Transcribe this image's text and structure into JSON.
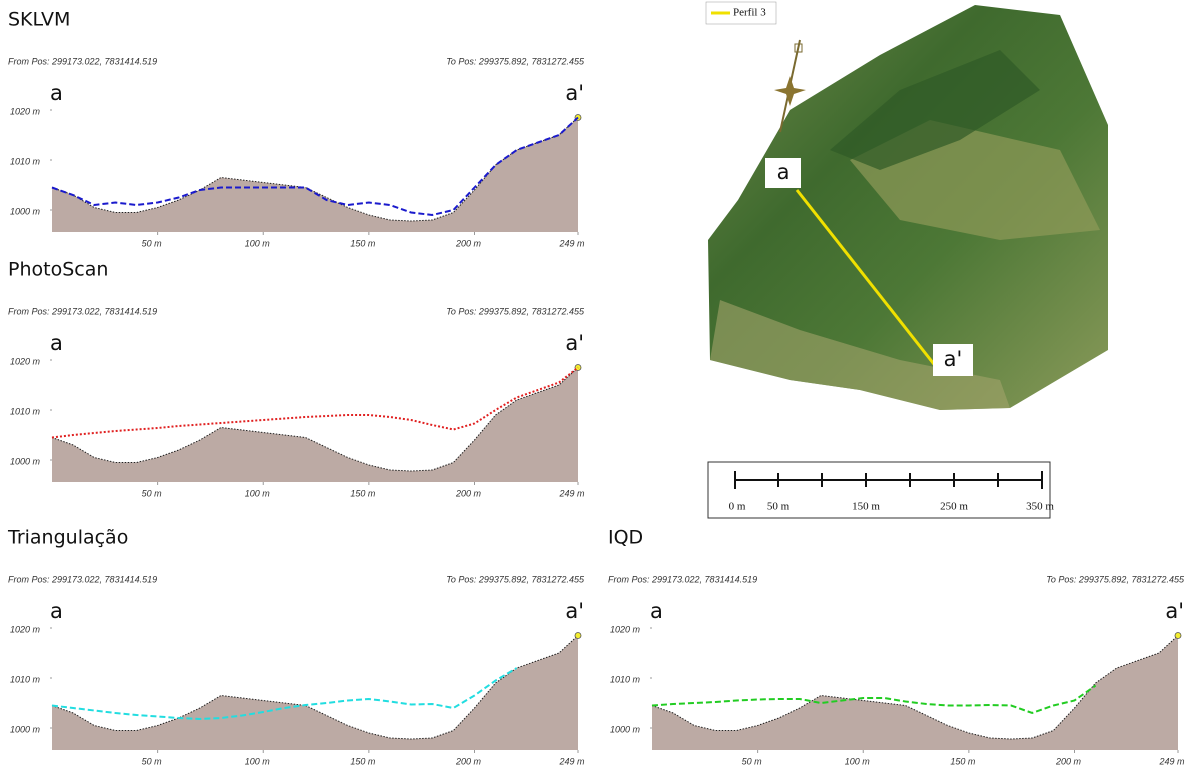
{
  "chart_data": [
    {
      "type": "area",
      "title": "SKLVM",
      "from_pos": "From Pos: 299173.022, 7831414.519",
      "to_pos": "To Pos: 299375.892, 7831272.455",
      "start_label": "a",
      "end_label": "a'",
      "x": [
        0,
        10,
        20,
        30,
        40,
        50,
        60,
        70,
        80,
        90,
        100,
        110,
        120,
        130,
        140,
        150,
        160,
        170,
        180,
        190,
        200,
        210,
        220,
        230,
        240,
        249
      ],
      "series": [
        {
          "color": "#bcaaa4",
          "values": [
            1004.5,
            1003,
            1000.5,
            999.5,
            999.5,
            1000.5,
            1002,
            1004,
            1006.5,
            1006,
            1005.5,
            1005,
            1004.5,
            1002.5,
            1000.5,
            999,
            998,
            997.8,
            998,
            999.5,
            1004,
            1009,
            1012,
            1013.5,
            1015,
            1018.5
          ]
        },
        {
          "color": "#1a1acc",
          "values": [
            1004.5,
            1003,
            1001,
            1001.5,
            1001,
            1001.5,
            1002.5,
            1004,
            1004.5,
            1004.5,
            1004.5,
            1004.5,
            1004.5,
            1002,
            1001,
            1001.5,
            1001,
            999.5,
            999,
            1000,
            1004.5,
            1009,
            1012,
            1013.5,
            1015,
            1018.5
          ]
        }
      ],
      "xlim": [
        0,
        249
      ],
      "xticks": [
        {
          "value": 50,
          "label": "50 m"
        },
        {
          "value": 100,
          "label": "100 m"
        },
        {
          "value": 150,
          "label": "150 m"
        },
        {
          "value": 200,
          "label": "200 m"
        },
        {
          "value": 249,
          "label": "249 m"
        }
      ],
      "ylim": [
        995.6,
        1022
      ],
      "yticks": [
        {
          "value": 1000,
          "label": "1000 m"
        },
        {
          "value": 1010,
          "label": "1010 m"
        },
        {
          "value": 1020,
          "label": "1020 m"
        }
      ]
    },
    {
      "type": "area",
      "title": "PhotoScan",
      "from_pos": "From Pos: 299173.022, 7831414.519",
      "to_pos": "To Pos: 299375.892, 7831272.455",
      "start_label": "a",
      "end_label": "a'",
      "x": [
        0,
        10,
        20,
        30,
        40,
        50,
        60,
        70,
        80,
        90,
        100,
        110,
        120,
        130,
        140,
        150,
        160,
        170,
        180,
        190,
        200,
        210,
        220,
        230,
        240,
        249
      ],
      "series": [
        {
          "color": "#bcaaa4",
          "values": [
            1004.5,
            1003,
            1000.5,
            999.5,
            999.5,
            1000.5,
            1002,
            1004,
            1006.5,
            1006,
            1005.5,
            1005,
            1004.5,
            1002.5,
            1000.5,
            999,
            998,
            997.8,
            998,
            999.5,
            1004,
            1009,
            1012,
            1013.5,
            1015,
            1018.5
          ]
        },
        {
          "color": "#e02020",
          "values": [
            1004.5,
            1005,
            1005.4,
            1005.8,
            1006.1,
            1006.4,
            1006.8,
            1007.1,
            1007.4,
            1007.7,
            1008,
            1008.3,
            1008.6,
            1008.8,
            1009,
            1009,
            1008.6,
            1008,
            1007,
            1006.1,
            1007.3,
            1010,
            1012.5,
            1014,
            1015.5,
            1018.5
          ]
        }
      ],
      "xlim": [
        0,
        249
      ],
      "xticks": [
        {
          "value": 50,
          "label": "50 m"
        },
        {
          "value": 100,
          "label": "100 m"
        },
        {
          "value": 150,
          "label": "150 m"
        },
        {
          "value": 200,
          "label": "200 m"
        },
        {
          "value": 249,
          "label": "249 m"
        }
      ],
      "ylim": [
        995.6,
        1022
      ],
      "yticks": [
        {
          "value": 1000,
          "label": "1000 m"
        },
        {
          "value": 1010,
          "label": "1010 m"
        },
        {
          "value": 1020,
          "label": "1020 m"
        }
      ]
    },
    {
      "type": "area",
      "title": "Triangulação",
      "from_pos": "From Pos: 299173.022, 7831414.519",
      "to_pos": "To Pos: 299375.892, 7831272.455",
      "start_label": "a",
      "end_label": "a'",
      "x": [
        0,
        10,
        20,
        30,
        40,
        50,
        60,
        70,
        80,
        90,
        100,
        110,
        120,
        130,
        140,
        150,
        160,
        170,
        180,
        190,
        200,
        210,
        220,
        230,
        240,
        249
      ],
      "series": [
        {
          "color": "#bcaaa4",
          "values": [
            1004.5,
            1003,
            1000.5,
            999.5,
            999.5,
            1000.5,
            1002,
            1004,
            1006.5,
            1006,
            1005.5,
            1005,
            1004.5,
            1002.5,
            1000.5,
            999,
            998,
            997.8,
            998,
            999.5,
            1004,
            1009,
            1012,
            1013.5,
            1015,
            1018.5
          ]
        },
        {
          "color": "#22dde0",
          "values": [
            1004.5,
            1004,
            1003.5,
            1003,
            1002.6,
            1002.3,
            1002,
            1001.8,
            1002,
            1002.5,
            1003.2,
            1004,
            1004.6,
            1005,
            1005.5,
            1005.8,
            1005.3,
            1004.7,
            1004.8,
            1004,
            1006.5,
            1009.5,
            1012,
            null,
            null,
            null
          ]
        }
      ],
      "xlim": [
        0,
        249
      ],
      "xticks": [
        {
          "value": 50,
          "label": "50 m"
        },
        {
          "value": 100,
          "label": "100 m"
        },
        {
          "value": 150,
          "label": "150 m"
        },
        {
          "value": 200,
          "label": "200 m"
        },
        {
          "value": 249,
          "label": "249 m"
        }
      ],
      "ylim": [
        995.6,
        1022
      ],
      "yticks": [
        {
          "value": 1000,
          "label": "1000 m"
        },
        {
          "value": 1010,
          "label": "1010 m"
        },
        {
          "value": 1020,
          "label": "1020 m"
        }
      ]
    },
    {
      "type": "area",
      "title": "IQD",
      "from_pos": "From Pos: 299173.022, 7831414.519",
      "to_pos": "To Pos: 299375.892, 7831272.455",
      "start_label": "a",
      "end_label": "a'",
      "x": [
        0,
        10,
        20,
        30,
        40,
        50,
        60,
        70,
        80,
        90,
        100,
        110,
        120,
        130,
        140,
        150,
        160,
        170,
        180,
        190,
        200,
        210,
        220,
        230,
        240,
        249
      ],
      "series": [
        {
          "color": "#bcaaa4",
          "values": [
            1004.5,
            1003,
            1000.5,
            999.5,
            999.5,
            1000.5,
            1002,
            1004,
            1006.5,
            1006,
            1005.5,
            1005,
            1004.5,
            1002.5,
            1000.5,
            999,
            998,
            997.8,
            998,
            999.5,
            1004,
            1009,
            1012,
            1013.5,
            1015,
            1018.5
          ]
        },
        {
          "color": "#22cc22",
          "values": [
            1004.5,
            1004.8,
            1005,
            1005.2,
            1005.5,
            1005.7,
            1005.8,
            1005.8,
            1005,
            1005.5,
            1006,
            1006,
            1005.3,
            1004.8,
            1004.5,
            1004.5,
            1004.6,
            1004.5,
            1003,
            1004.5,
            1005.5,
            1008.5,
            null,
            null,
            null,
            null
          ]
        }
      ],
      "xlim": [
        0,
        249
      ],
      "xticks": [
        {
          "value": 50,
          "label": "50 m"
        },
        {
          "value": 100,
          "label": "100 m"
        },
        {
          "value": 150,
          "label": "150 m"
        },
        {
          "value": 200,
          "label": "200 m"
        },
        {
          "value": 249,
          "label": "249 m"
        }
      ],
      "ylim": [
        995.6,
        1022
      ],
      "yticks": [
        {
          "value": 1000,
          "label": "1000 m"
        },
        {
          "value": 1010,
          "label": "1010 m"
        },
        {
          "value": 1020,
          "label": "1020 m"
        }
      ]
    }
  ],
  "map": {
    "legend": "Perfil 3",
    "start_label": "a",
    "end_label": "a'",
    "scale_labels": [
      "0 m",
      "50 m",
      "150 m",
      "250 m",
      "350 m"
    ]
  }
}
